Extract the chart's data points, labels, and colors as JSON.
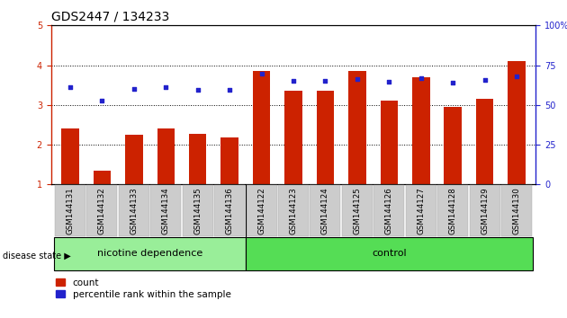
{
  "title": "GDS2447 / 134233",
  "samples": [
    "GSM144131",
    "GSM144132",
    "GSM144133",
    "GSM144134",
    "GSM144135",
    "GSM144136",
    "GSM144122",
    "GSM144123",
    "GSM144124",
    "GSM144125",
    "GSM144126",
    "GSM144127",
    "GSM144128",
    "GSM144129",
    "GSM144130"
  ],
  "bar_values": [
    2.4,
    1.35,
    2.25,
    2.4,
    2.28,
    2.18,
    3.85,
    3.35,
    3.35,
    3.85,
    3.1,
    3.7,
    2.95,
    3.15,
    4.1
  ],
  "dot_values": [
    3.45,
    3.12,
    3.4,
    3.45,
    3.38,
    3.38,
    3.78,
    3.6,
    3.6,
    3.65,
    3.58,
    3.68,
    3.55,
    3.62,
    3.72
  ],
  "bar_color": "#cc2200",
  "dot_color": "#2222cc",
  "ylim_left": [
    1,
    5
  ],
  "ylim_right": [
    0,
    100
  ],
  "yticks_left": [
    1,
    2,
    3,
    4,
    5
  ],
  "yticks_right": [
    0,
    25,
    50,
    75,
    100
  ],
  "group1_label": "nicotine dependence",
  "group2_label": "control",
  "group1_count": 6,
  "group2_count": 9,
  "group1_color": "#99ee99",
  "group2_color": "#55dd55",
  "disease_state_label": "disease state",
  "legend_count_label": "count",
  "legend_percentile_label": "percentile rank within the sample",
  "bg_color": "#ffffff",
  "plot_bg_color": "#ffffff",
  "tick_label_bg": "#cccccc",
  "title_fontsize": 10,
  "axis_fontsize": 7,
  "legend_fontsize": 7.5,
  "label_fontsize": 6.2,
  "group_fontsize": 8
}
